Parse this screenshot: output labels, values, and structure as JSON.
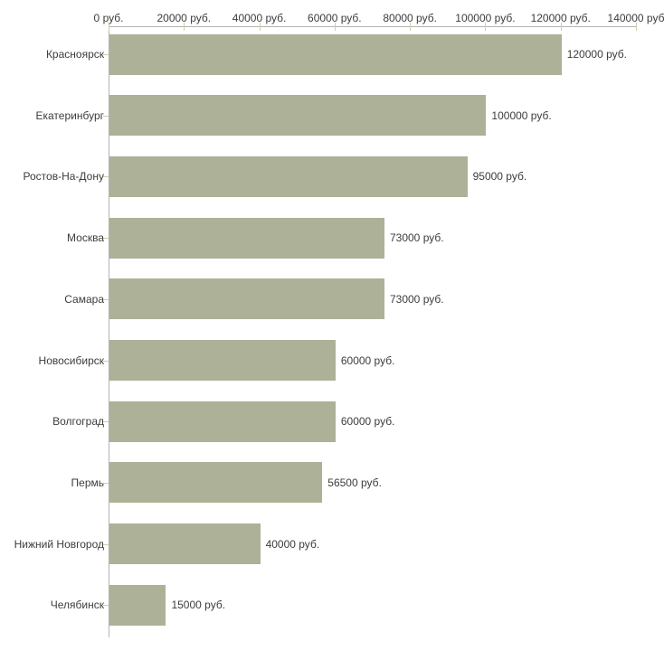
{
  "chart_data": {
    "type": "bar",
    "orientation": "horizontal",
    "title": "",
    "xlabel": "",
    "ylabel": "",
    "legend": "none",
    "grid": false,
    "categories": [
      "Красноярск",
      "Екатеринбург",
      "Ростов-На-Дону",
      "Москва",
      "Самара",
      "Новосибирск",
      "Волгоград",
      "Пермь",
      "Нижний Новгород",
      "Челябинск"
    ],
    "values": [
      120000,
      100000,
      95000,
      73000,
      73000,
      60000,
      60000,
      56500,
      40000,
      15000
    ],
    "value_labels": [
      "120000 руб.",
      "100000 руб.",
      "95000 руб.",
      "73000 руб.",
      "73000 руб.",
      "60000 руб.",
      "60000 руб.",
      "56500 руб.",
      "40000 руб.",
      "15000 руб."
    ],
    "x_axis": {
      "position": "top",
      "range": [
        0,
        140000
      ],
      "ticks": [
        0,
        20000,
        40000,
        60000,
        80000,
        100000,
        120000,
        140000
      ],
      "tick_labels": [
        "0 руб.",
        "20000 руб.",
        "40000 руб.",
        "60000 руб.",
        "80000 руб.",
        "100000 руб.",
        "120000 руб.",
        "140000 руб"
      ]
    }
  },
  "colors": {
    "bar_fill": "#acb198",
    "axis_line": "#b3b3b3",
    "tick_mark": "#cdd0ab",
    "label_text": "#3c3c3c",
    "background": "#ffffff"
  }
}
